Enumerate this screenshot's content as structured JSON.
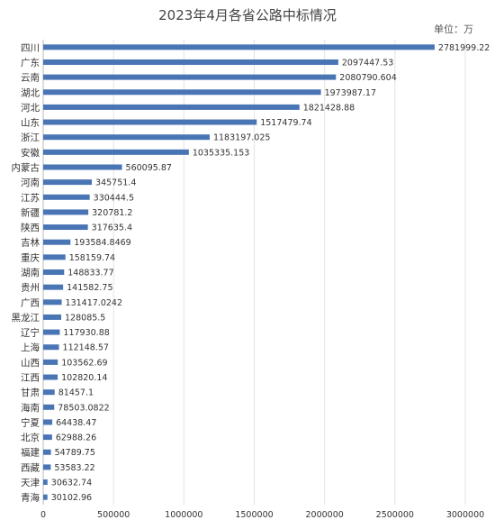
{
  "chart_data": {
    "type": "bar",
    "orientation": "horizontal",
    "title": "2023年4月各省公路中标情况",
    "unit_note": "单位：万",
    "color": "#4a75b5",
    "categories": [
      "四川",
      "广东",
      "云南",
      "湖北",
      "河北",
      "山东",
      "浙江",
      "安徽",
      "内蒙古",
      "河南",
      "江苏",
      "新疆",
      "陕西",
      "吉林",
      "重庆",
      "湖南",
      "贵州",
      "广西",
      "黑龙江",
      "辽宁",
      "上海",
      "山西",
      "江西",
      "甘肃",
      "海南",
      "宁夏",
      "北京",
      "福建",
      "西藏",
      "天津",
      "青海"
    ],
    "values": [
      2781999.22,
      2097447.53,
      2080790.604,
      1973987.17,
      1821428.88,
      1517479.74,
      1183197.025,
      1035335.153,
      560095.87,
      345751.4,
      330444.5,
      320781.2,
      317635.4,
      193584.8469,
      158159.74,
      148833.77,
      141582.75,
      131417.0242,
      128085.5,
      117930.88,
      112148.57,
      103562.69,
      102820.14,
      81457.1,
      78503.0822,
      64438.47,
      62988.26,
      54789.75,
      53583.22,
      30632.74,
      30102.96
    ],
    "value_labels": [
      "2781999.22",
      "2097447.53",
      "2080790.604",
      "1973987.17",
      "1821428.88",
      "1517479.74",
      "1183197.025",
      "1035335.153",
      "560095.87",
      "345751.4",
      "330444.5",
      "320781.2",
      "317635.4",
      "193584.8469",
      "158159.74",
      "148833.77",
      "141582.75",
      "131417.0242",
      "128085.5",
      "117930.88",
      "112148.57",
      "103562.69",
      "102820.14",
      "81457.1",
      "78503.0822",
      "64438.47",
      "62988.26",
      "54789.75",
      "53583.22",
      "30632.74",
      "30102.96"
    ],
    "xlim": [
      0,
      3000000
    ],
    "x_ticks": [
      0,
      500000,
      1000000,
      1500000,
      2000000,
      2500000,
      3000000
    ],
    "x_tick_labels": [
      "0",
      "500000",
      "1000000",
      "1500000",
      "2000000",
      "2500000",
      "3000000"
    ],
    "grid": "vertical"
  }
}
